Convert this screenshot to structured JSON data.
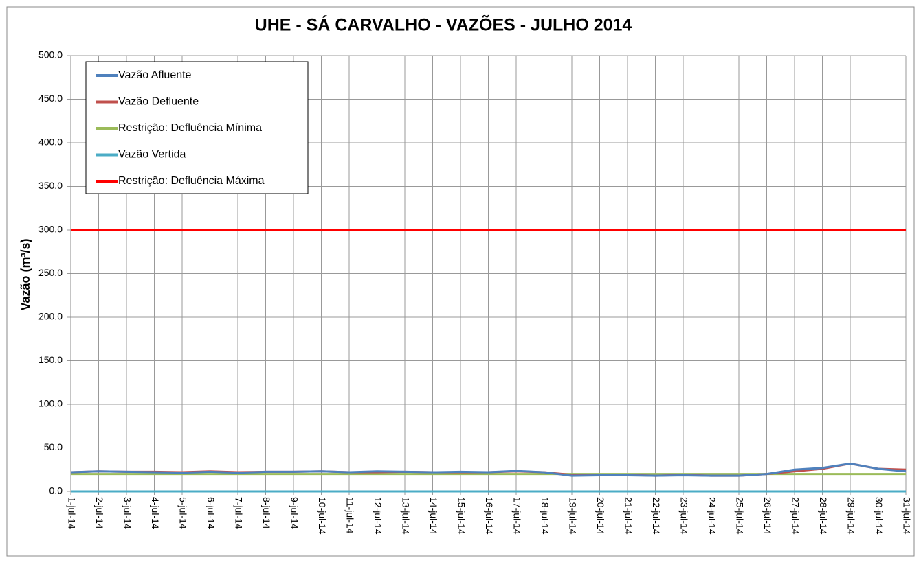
{
  "chart_data": {
    "type": "line",
    "title": "UHE - SÁ CARVALHO - VAZÕES - JULHO 2014",
    "y_label": "Vazão (m³/s)",
    "categories": [
      "1-jul-14",
      "2-jul-14",
      "3-jul-14",
      "4-jul-14",
      "5-jul-14",
      "6-jul-14",
      "7-jul-14",
      "8-jul-14",
      "9-jul-14",
      "10-jul-14",
      "11-jul-14",
      "12-jul-14",
      "13-jul-14",
      "14-jul-14",
      "15-jul-14",
      "16-jul-14",
      "17-jul-14",
      "18-jul-14",
      "19-jul-14",
      "20-jul-14",
      "21-jul-14",
      "22-jul-14",
      "23-jul-14",
      "24-jul-14",
      "25-jul-14",
      "26-jul-14",
      "27-jul-14",
      "28-jul-14",
      "29-jul-14",
      "30-jul-14",
      "31-jul-14"
    ],
    "series": [
      {
        "name": "Vazão Afluente",
        "color": "#4f81bd",
        "values": [
          22,
          23,
          22.5,
          22,
          21.5,
          22.5,
          21.5,
          22.5,
          22.5,
          23,
          22,
          23,
          22.5,
          22,
          22.5,
          22,
          23.5,
          22,
          18,
          18.5,
          18.5,
          18,
          18.5,
          18,
          18,
          20,
          25,
          27,
          32,
          26,
          23
        ]
      },
      {
        "name": "Vazão Defluente",
        "color": "#c0504d",
        "values": [
          22,
          23,
          22.5,
          22.5,
          22,
          23,
          22,
          22.5,
          22.5,
          23,
          22,
          22,
          22.5,
          22,
          22,
          22,
          23,
          22,
          19,
          19,
          19,
          18,
          19,
          18,
          18,
          20,
          23,
          26,
          32,
          26,
          25
        ]
      },
      {
        "name": "Restrição: Defluência Mínima",
        "color": "#9bbb59",
        "values": [
          20,
          20,
          20,
          20,
          20,
          20,
          20,
          20,
          20,
          20,
          20,
          20,
          20,
          20,
          20,
          20,
          20,
          20,
          20,
          20,
          20,
          20,
          20,
          20,
          20,
          20,
          20,
          20,
          20,
          20,
          20
        ]
      },
      {
        "name": "Vazão Vertida",
        "color": "#4bacc6",
        "values": [
          0,
          0,
          0,
          0,
          0,
          0,
          0,
          0,
          0,
          0,
          0,
          0,
          0,
          0,
          0,
          0,
          0,
          0,
          0,
          0,
          0,
          0,
          0,
          0,
          0,
          0,
          0,
          0,
          0,
          0,
          0
        ]
      },
      {
        "name": "Restrição: Defluência Máxima",
        "color": "#ff0000",
        "values": [
          300,
          300,
          300,
          300,
          300,
          300,
          300,
          300,
          300,
          300,
          300,
          300,
          300,
          300,
          300,
          300,
          300,
          300,
          300,
          300,
          300,
          300,
          300,
          300,
          300,
          300,
          300,
          300,
          300,
          300,
          300
        ]
      }
    ],
    "ylim": [
      0,
      500
    ],
    "yticks": [
      {
        "value": 0,
        "label": "0.0"
      },
      {
        "value": 50,
        "label": "50.0"
      },
      {
        "value": 100,
        "label": "100.0"
      },
      {
        "value": 150,
        "label": "150.0"
      },
      {
        "value": 200,
        "label": "200.0"
      },
      {
        "value": 250,
        "label": "250.0"
      },
      {
        "value": 300,
        "label": "300.0"
      },
      {
        "value": 350,
        "label": "350.0"
      },
      {
        "value": 400,
        "label": "400.0"
      },
      {
        "value": 450,
        "label": "450.0"
      },
      {
        "value": 500,
        "label": "500.0"
      }
    ],
    "grid": true,
    "legend": "upper left"
  }
}
